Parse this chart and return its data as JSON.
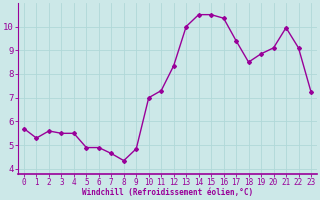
{
  "x": [
    0,
    1,
    2,
    3,
    4,
    5,
    6,
    7,
    8,
    9,
    10,
    11,
    12,
    13,
    14,
    15,
    16,
    17,
    18,
    19,
    20,
    21,
    22,
    23
  ],
  "y": [
    5.7,
    5.3,
    5.6,
    5.5,
    5.5,
    4.9,
    4.9,
    4.65,
    4.35,
    4.85,
    7.0,
    7.3,
    8.35,
    10.0,
    10.5,
    10.5,
    10.35,
    9.4,
    8.5,
    8.85,
    9.1,
    9.95,
    9.1,
    7.25
  ],
  "line_color": "#990099",
  "marker": "D",
  "marker_size": 2.0,
  "line_width": 1.0,
  "bg_color": "#cce8e8",
  "grid_color": "#b0d8d8",
  "xlabel": "Windchill (Refroidissement éolien,°C)",
  "xlabel_color": "#990099",
  "tick_color": "#990099",
  "ylim": [
    3.8,
    11.0
  ],
  "yticks": [
    4,
    5,
    6,
    7,
    8,
    9,
    10
  ],
  "xticks": [
    0,
    1,
    2,
    3,
    4,
    5,
    6,
    7,
    8,
    9,
    10,
    11,
    12,
    13,
    14,
    15,
    16,
    17,
    18,
    19,
    20,
    21,
    22,
    23
  ],
  "spine_color": "#990099",
  "font_family": "monospace",
  "tick_fontsize": 5.5,
  "xlabel_fontsize": 5.5,
  "ytick_fontsize": 6.5
}
